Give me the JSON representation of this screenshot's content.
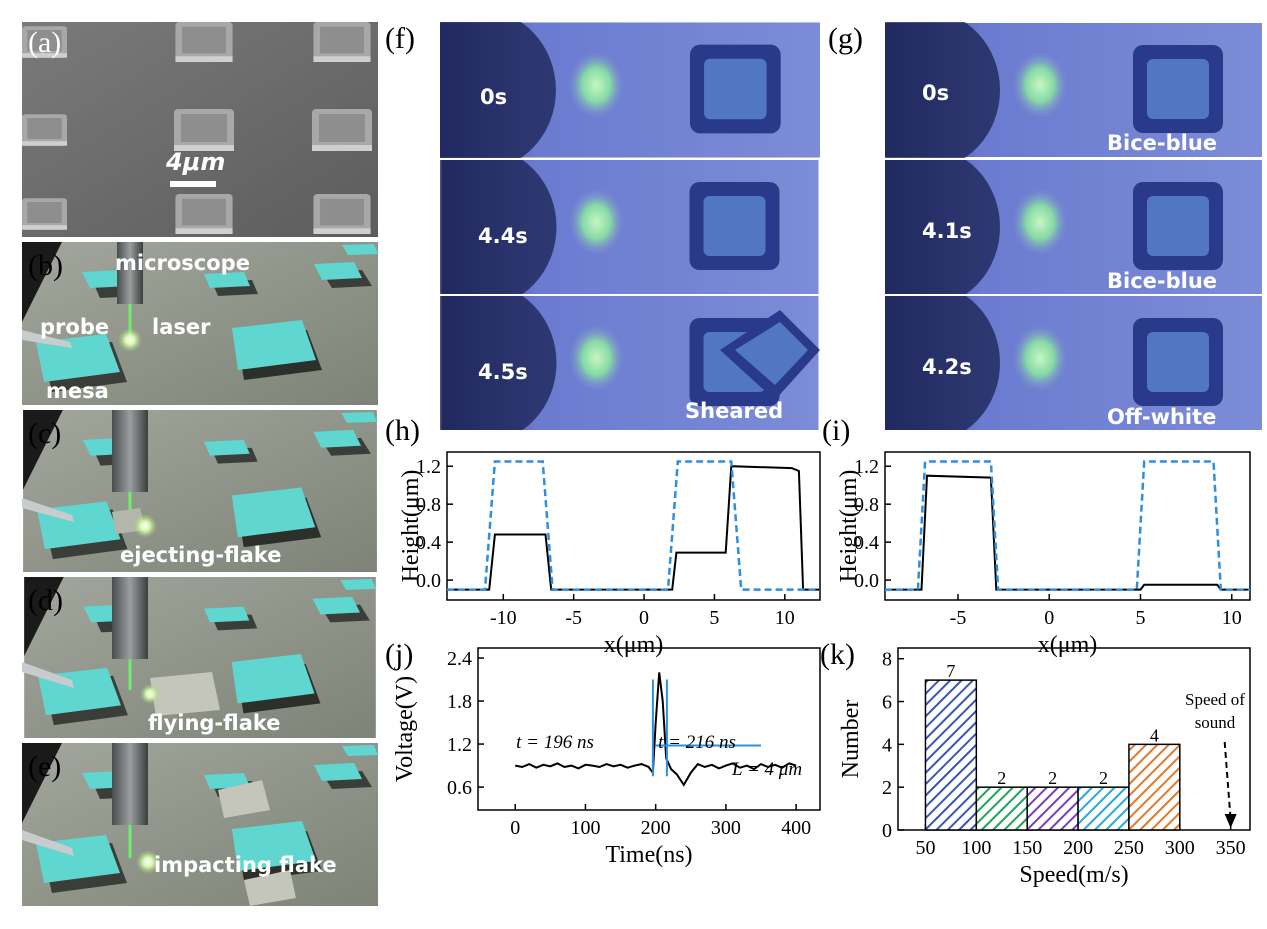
{
  "panels": {
    "a": {
      "label": "(a)",
      "scale_bar": "4μm"
    },
    "b": {
      "label": "(b)",
      "microscope": "microscope",
      "probe": "probe",
      "laser": "laser",
      "mesa": "mesa"
    },
    "c": {
      "label": "(c)",
      "caption": "ejecting-flake"
    },
    "d": {
      "label": "(d)",
      "caption": "flying-flake"
    },
    "e": {
      "label": "(e)",
      "caption": "impacting flake"
    },
    "f": {
      "label": "(f)",
      "times": [
        "0s",
        "4.4s",
        "4.5s"
      ],
      "note": "Sheared"
    },
    "g": {
      "label": "(g)",
      "times": [
        "0s",
        "4.1s",
        "4.2s"
      ],
      "states": [
        "Bice-blue",
        "Bice-blue",
        "Off-white"
      ]
    }
  },
  "chart_data": [
    {
      "type": "line",
      "label": "(h)",
      "xlabel": "x(μm)",
      "ylabel": "Height(μm)",
      "xlim": [
        -14,
        12.5
      ],
      "xticks": [
        -10,
        -5,
        0,
        5,
        10
      ],
      "ylim": [
        -0.21,
        1.35
      ],
      "yticks": [
        {
          "value": 0,
          "label": "0.0"
        },
        0.4,
        0.8,
        1.2
      ],
      "series": [
        {
          "color": "#000000",
          "dash": false,
          "x": [
            -14,
            -11,
            -10.6,
            -7,
            -6.6,
            2,
            2.3,
            5.8,
            6.2,
            10.5,
            11,
            11.3,
            12.5
          ],
          "values": [
            -0.1,
            -0.1,
            0.48,
            0.48,
            -0.1,
            -0.1,
            0.29,
            0.29,
            1.2,
            1.18,
            1.15,
            -0.1,
            -0.1
          ]
        },
        {
          "color": "#2e8fdc",
          "dash": true,
          "x": [
            -14,
            -11.3,
            -10.6,
            -7.2,
            -6.5,
            1.7,
            2.4,
            6.2,
            6.9,
            12.5
          ],
          "values": [
            -0.1,
            -0.1,
            1.25,
            1.25,
            -0.1,
            -0.1,
            1.25,
            1.25,
            -0.1,
            -0.1
          ]
        }
      ]
    },
    {
      "type": "line",
      "label": "(i)",
      "xlabel": "x(μm)",
      "ylabel": "Height(μm)",
      "xlim": [
        -9,
        11
      ],
      "xticks": [
        -5,
        0,
        5,
        10
      ],
      "ylim": [
        -0.21,
        1.35
      ],
      "yticks": [
        {
          "value": 0,
          "label": "0.0"
        },
        0.4,
        0.8,
        1.2
      ],
      "series": [
        {
          "color": "#000000",
          "dash": false,
          "x": [
            -9,
            -7,
            -6.7,
            -3.2,
            -2.9,
            5,
            5.2,
            9.2,
            9.4,
            11
          ],
          "values": [
            -0.1,
            -0.1,
            1.1,
            1.08,
            -0.1,
            -0.1,
            -0.05,
            -0.05,
            -0.1,
            -0.1
          ]
        },
        {
          "color": "#2e8fdc",
          "dash": true,
          "x": [
            -9,
            -7.2,
            -6.8,
            -3.2,
            -2.8,
            4.8,
            5.2,
            9,
            9.4,
            11
          ],
          "values": [
            -0.1,
            -0.1,
            1.25,
            1.25,
            -0.1,
            -0.1,
            1.25,
            1.25,
            -0.1,
            -0.1
          ]
        }
      ]
    },
    {
      "type": "line",
      "label": "(j)",
      "xlabel": "Time(ns)",
      "ylabel": "Voltage(V)",
      "xlim": [
        -53,
        434
      ],
      "xticks": [
        0,
        100,
        200,
        300,
        400
      ],
      "ylim": [
        0.28,
        2.54
      ],
      "yticks": [
        0.6,
        1.2,
        1.8,
        2.4
      ],
      "annotations": [
        "t = 196 ns",
        "t = 216 ns",
        "L = 4 μm"
      ],
      "series": [
        {
          "color": "#000000",
          "dash": false,
          "x": [
            0,
            10,
            20,
            30,
            40,
            50,
            60,
            70,
            80,
            90,
            100,
            110,
            120,
            130,
            140,
            150,
            160,
            170,
            180,
            190,
            196,
            200,
            205,
            210,
            215,
            222,
            230,
            240,
            250,
            260,
            270,
            280,
            290,
            300,
            310,
            320,
            330,
            340,
            350,
            360,
            370,
            380,
            390,
            400
          ],
          "values": [
            0.9,
            0.88,
            0.92,
            0.87,
            0.91,
            0.89,
            0.93,
            0.88,
            0.9,
            0.86,
            0.91,
            0.9,
            0.88,
            0.92,
            0.89,
            0.91,
            0.87,
            0.9,
            0.92,
            0.88,
            0.8,
            1.5,
            2.2,
            1.8,
            1.0,
            0.85,
            0.78,
            0.63,
            0.8,
            0.92,
            0.88,
            0.91,
            0.86,
            0.9,
            0.93,
            0.87,
            0.9,
            0.85,
            0.92,
            0.88,
            0.91,
            0.87,
            0.93,
            0.9
          ]
        },
        {
          "color": "#2e8fdc",
          "dash": false,
          "x": [
            196,
            196,
            206,
            216,
            216,
            208,
            200,
            350
          ],
          "values": [
            0.75,
            2.1,
            null,
            2.1,
            0.75,
            null,
            1.18,
            1.18
          ]
        }
      ]
    },
    {
      "type": "histogram",
      "label": "(k)",
      "xlabel": "Speed(m/s)",
      "ylabel": "Number",
      "xlim": [
        23,
        369
      ],
      "xticks": [
        50,
        100,
        150,
        200,
        250,
        300,
        350
      ],
      "ylim": [
        0,
        8.5
      ],
      "yticks": [
        0,
        2,
        4,
        6,
        8
      ],
      "bins": [
        50,
        100,
        150,
        200,
        250,
        300
      ],
      "values": [
        7,
        2,
        2,
        2,
        4
      ],
      "colors": [
        "#3a55b4",
        "#1fa35a",
        "#7a3fb8",
        "#2aa8d8",
        "#e07a2a"
      ],
      "annotations": [
        "Speed of",
        "sound"
      ],
      "arrow_x": 350
    }
  ]
}
